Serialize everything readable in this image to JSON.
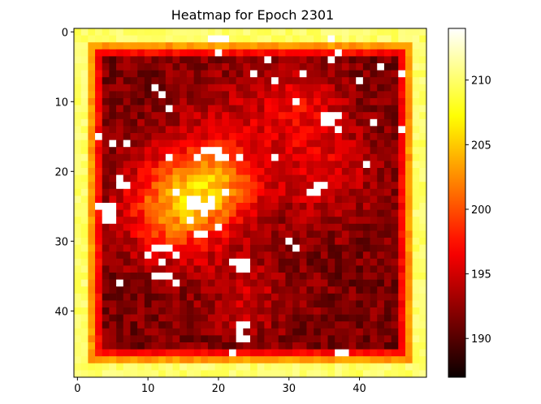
{
  "chart_data": {
    "type": "heatmap",
    "title": "Heatmap for Epoch 2301",
    "xlabel": "",
    "ylabel": "",
    "rows": 50,
    "cols": 50,
    "x_ticks": [
      0,
      10,
      20,
      30,
      40
    ],
    "y_ticks": [
      0,
      10,
      20,
      30,
      40
    ],
    "colormap": "hot",
    "colorbar": {
      "vmin": 187,
      "vmax": 214,
      "ticks": [
        190,
        195,
        200,
        205,
        210
      ]
    },
    "value_model": {
      "border_value": 206,
      "interior_base": 191.5,
      "hotspots": [
        {
          "row": 25,
          "col": 14,
          "sigma": 5,
          "amp": 11
        },
        {
          "row": 22,
          "col": 20,
          "sigma": 4,
          "amp": 7
        },
        {
          "row": 15,
          "col": 22,
          "sigma": 6,
          "amp": 3
        },
        {
          "row": 10,
          "col": 32,
          "sigma": 4,
          "amp": 4
        },
        {
          "row": 20,
          "col": 35,
          "sigma": 5,
          "amp": 4
        },
        {
          "row": 38,
          "col": 24,
          "sigma": 4,
          "amp": 3
        }
      ],
      "saturated_cells": [
        [
          1,
          19
        ],
        [
          1,
          20
        ],
        [
          1,
          21
        ],
        [
          3,
          20
        ],
        [
          1,
          36
        ],
        [
          3,
          37
        ],
        [
          4,
          27
        ],
        [
          4,
          36
        ],
        [
          6,
          25
        ],
        [
          6,
          32
        ],
        [
          7,
          40
        ],
        [
          5,
          43
        ],
        [
          6,
          46
        ],
        [
          7,
          28
        ],
        [
          8,
          11
        ],
        [
          9,
          12
        ],
        [
          10,
          31
        ],
        [
          11,
          13
        ],
        [
          12,
          35
        ],
        [
          12,
          36
        ],
        [
          12,
          37
        ],
        [
          13,
          35
        ],
        [
          13,
          36
        ],
        [
          14,
          37
        ],
        [
          13,
          42
        ],
        [
          14,
          46
        ],
        [
          15,
          3
        ],
        [
          16,
          5
        ],
        [
          16,
          7
        ],
        [
          17,
          18
        ],
        [
          17,
          19
        ],
        [
          17,
          20
        ],
        [
          18,
          13
        ],
        [
          18,
          17
        ],
        [
          18,
          20
        ],
        [
          18,
          21
        ],
        [
          18,
          23
        ],
        [
          18,
          28
        ],
        [
          19,
          41
        ],
        [
          21,
          6
        ],
        [
          22,
          6
        ],
        [
          22,
          7
        ],
        [
          22,
          34
        ],
        [
          22,
          35
        ],
        [
          23,
          14
        ],
        [
          23,
          21
        ],
        [
          23,
          33
        ],
        [
          23,
          34
        ],
        [
          24,
          16
        ],
        [
          24,
          17
        ],
        [
          24,
          19
        ],
        [
          25,
          3
        ],
        [
          25,
          4
        ],
        [
          25,
          5
        ],
        [
          25,
          16
        ],
        [
          25,
          17
        ],
        [
          25,
          18
        ],
        [
          25,
          19
        ],
        [
          26,
          4
        ],
        [
          26,
          5
        ],
        [
          26,
          18
        ],
        [
          27,
          4
        ],
        [
          27,
          5
        ],
        [
          27,
          16
        ],
        [
          28,
          20
        ],
        [
          29,
          17
        ],
        [
          29,
          18
        ],
        [
          30,
          30
        ],
        [
          31,
          11
        ],
        [
          31,
          12
        ],
        [
          31,
          13
        ],
        [
          31,
          31
        ],
        [
          32,
          10
        ],
        [
          32,
          14
        ],
        [
          33,
          12
        ],
        [
          33,
          22
        ],
        [
          33,
          23
        ],
        [
          33,
          24
        ],
        [
          34,
          23
        ],
        [
          34,
          24
        ],
        [
          35,
          11
        ],
        [
          35,
          12
        ],
        [
          35,
          13
        ],
        [
          36,
          6
        ],
        [
          36,
          14
        ],
        [
          42,
          23
        ],
        [
          42,
          24
        ],
        [
          43,
          23
        ],
        [
          44,
          23
        ],
        [
          44,
          24
        ],
        [
          46,
          22
        ],
        [
          46,
          37
        ],
        [
          46,
          38
        ]
      ]
    }
  }
}
